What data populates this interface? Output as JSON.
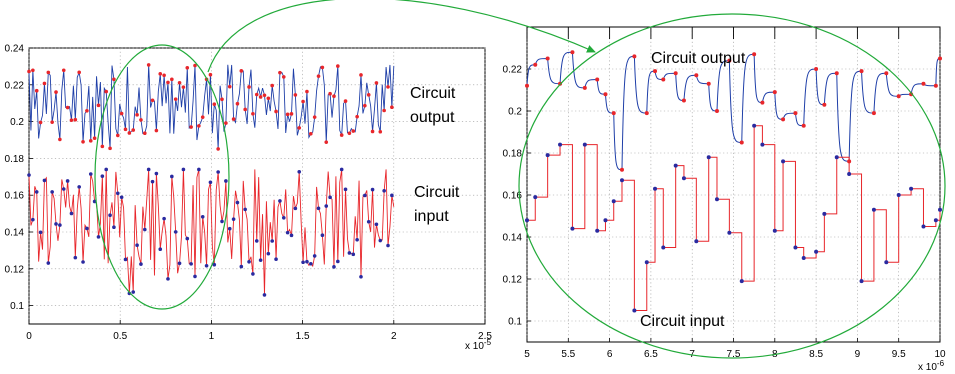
{
  "chart_data": [
    {
      "type": "line",
      "x_multiplier": "x 10",
      "x_exponent": "-5",
      "xlim": [
        0,
        2.5
      ],
      "ylim": [
        0.09,
        0.24
      ],
      "x_ticks": [
        "0",
        "0.5",
        "1",
        "1.5",
        "2",
        "2.5"
      ],
      "y_ticks": [
        "0.1",
        "0.12",
        "0.14",
        "0.16",
        "0.18",
        "0.2",
        "0.22",
        "0.24"
      ],
      "grid": true,
      "x_extent": [
        0,
        2
      ],
      "series": [
        {
          "name": "Circuit output",
          "line_color": "#1f3fa8",
          "marker_color": "#e8262b",
          "y_center": 0.212,
          "y_range": [
            0.185,
            0.234
          ]
        },
        {
          "name": "Circuit input",
          "line_color": "#e8262b",
          "marker_color": "#2a2aa0",
          "y_center": 0.148,
          "y_range": [
            0.105,
            0.174
          ]
        }
      ],
      "annotations": {
        "output_label": [
          "Circuit",
          "output"
        ],
        "input_label": [
          "Circuit",
          "input"
        ]
      },
      "highlight_ellipse_x": [
        0.34,
        1.07
      ]
    },
    {
      "type": "line",
      "x_multiplier": "x 10",
      "x_exponent": "-6",
      "xlim": [
        5,
        10
      ],
      "ylim": [
        0.09,
        0.24
      ],
      "x_ticks": [
        "5",
        "5.5",
        "6",
        "6.5",
        "7",
        "7.5",
        "8",
        "8.5",
        "9",
        "9.5",
        "10"
      ],
      "y_ticks": [
        "0.1",
        "0.12",
        "0.14",
        "0.16",
        "0.18",
        "0.2",
        "0.22"
      ],
      "grid": true,
      "series": [
        {
          "name": "Circuit output",
          "line_color": "#1f3fa8",
          "marker_color": "#e8262b",
          "x": [
            5.0,
            5.1,
            5.25,
            5.4,
            5.55,
            5.7,
            5.85,
            5.95,
            6.05,
            6.15,
            6.3,
            6.45,
            6.55,
            6.65,
            6.8,
            6.9,
            7.05,
            7.2,
            7.3,
            7.45,
            7.6,
            7.75,
            7.85,
            8.0,
            8.1,
            8.25,
            8.35,
            8.5,
            8.6,
            8.75,
            8.9,
            9.05,
            9.2,
            9.35,
            9.5,
            9.65,
            9.8,
            9.95,
            10.0
          ],
          "y": [
            0.212,
            0.222,
            0.225,
            0.213,
            0.228,
            0.211,
            0.215,
            0.208,
            0.199,
            0.172,
            0.226,
            0.199,
            0.219,
            0.215,
            0.218,
            0.205,
            0.217,
            0.213,
            0.2,
            0.224,
            0.185,
            0.227,
            0.204,
            0.209,
            0.196,
            0.199,
            0.193,
            0.22,
            0.203,
            0.218,
            0.176,
            0.219,
            0.199,
            0.218,
            0.207,
            0.208,
            0.213,
            0.212,
            0.225
          ]
        },
        {
          "name": "Circuit input",
          "line_color": "#e8262b",
          "marker_color": "#2a2aa0",
          "x": [
            5.0,
            5.1,
            5.25,
            5.4,
            5.55,
            5.7,
            5.85,
            5.95,
            6.05,
            6.15,
            6.3,
            6.45,
            6.55,
            6.65,
            6.8,
            6.9,
            7.05,
            7.2,
            7.3,
            7.45,
            7.6,
            7.75,
            7.85,
            8.0,
            8.1,
            8.25,
            8.35,
            8.5,
            8.6,
            8.75,
            8.9,
            9.05,
            9.2,
            9.35,
            9.5,
            9.65,
            9.8,
            9.95,
            10.0
          ],
          "y": [
            0.148,
            0.159,
            0.179,
            0.184,
            0.144,
            0.184,
            0.143,
            0.148,
            0.157,
            0.167,
            0.105,
            0.128,
            0.163,
            0.135,
            0.174,
            0.168,
            0.138,
            0.178,
            0.158,
            0.142,
            0.119,
            0.193,
            0.184,
            0.143,
            0.176,
            0.135,
            0.13,
            0.133,
            0.151,
            0.178,
            0.17,
            0.119,
            0.153,
            0.128,
            0.16,
            0.163,
            0.145,
            0.148,
            0.153
          ]
        }
      ],
      "annotations": {
        "output_label": "Circuit output",
        "input_label": "Circuit input"
      }
    }
  ]
}
